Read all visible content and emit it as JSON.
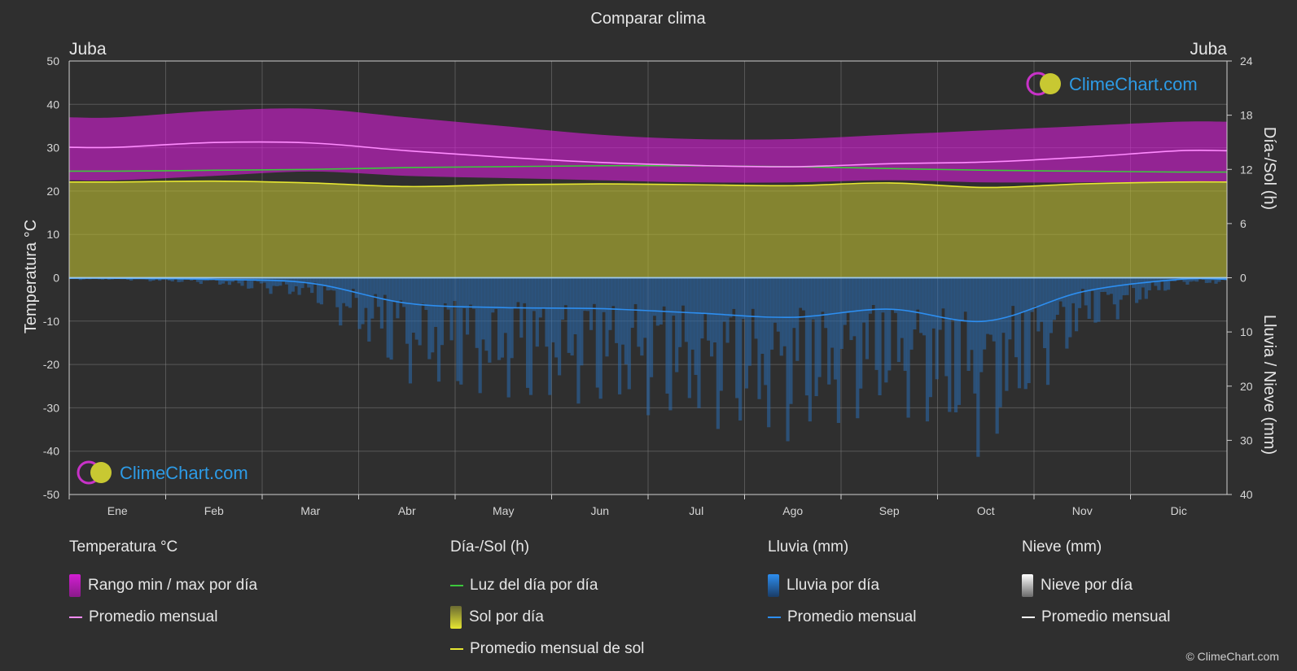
{
  "chart_data": {
    "type": "area",
    "title": "Comparar clima",
    "location_left": "Juba",
    "location_right": "Juba",
    "x_categories": [
      "Ene",
      "Feb",
      "Mar",
      "Abr",
      "May",
      "Jun",
      "Jul",
      "Ago",
      "Sep",
      "Oct",
      "Nov",
      "Dic"
    ],
    "left_axis": {
      "label": "Temperatura °C",
      "min": -50,
      "max": 50,
      "ticks": [
        50,
        40,
        30,
        20,
        10,
        0,
        -10,
        -20,
        -30,
        -40,
        -50
      ]
    },
    "right_axis_top": {
      "label": "Día-/Sol (h)",
      "min": 0,
      "max": 24,
      "ticks": [
        24,
        18,
        12,
        6,
        0
      ]
    },
    "right_axis_bottom": {
      "label": "Lluvia / Nieve (mm)",
      "min": 0,
      "max": 40,
      "ticks": [
        0,
        10,
        20,
        30,
        40
      ]
    },
    "grid": true,
    "series": [
      {
        "name": "Rango min / max por día",
        "type": "band",
        "color": "#d21ed2",
        "min": [
          22.5,
          23.5,
          24.5,
          23.5,
          23,
          22.5,
          22,
          22,
          22.5,
          22,
          22,
          22
        ],
        "max": [
          37,
          38.5,
          39,
          37,
          35,
          33,
          32,
          32,
          33,
          34,
          35,
          36
        ]
      },
      {
        "name": "Promedio mensual",
        "type": "line",
        "color": "#ff8cff",
        "values": [
          30.1,
          31.2,
          31.1,
          29.3,
          27.8,
          26.6,
          25.9,
          25.6,
          26.3,
          26.7,
          27.8,
          29.3
        ]
      },
      {
        "name": "Luz del día por día",
        "type": "line",
        "axis": "sun",
        "color": "#3cc83c",
        "values": [
          11.8,
          11.9,
          12.0,
          12.2,
          12.3,
          12.4,
          12.4,
          12.3,
          12.1,
          11.9,
          11.8,
          11.7
        ]
      },
      {
        "name": "Sol por día",
        "type": "area",
        "axis": "sun",
        "color": "#b9b932",
        "values": [
          10.6,
          10.7,
          10.5,
          10.1,
          10.3,
          10.4,
          10.3,
          10.2,
          10.5,
          10.0,
          10.4,
          10.6
        ]
      },
      {
        "name": "Promedio mensual de sol",
        "type": "line",
        "axis": "sun",
        "color": "#e6e632",
        "values": [
          10.6,
          10.7,
          10.5,
          10.1,
          10.3,
          10.4,
          10.3,
          10.2,
          10.5,
          10.0,
          10.4,
          10.6
        ]
      },
      {
        "name": "Lluvia por día",
        "type": "bars",
        "axis": "rain",
        "color": "#2a6bb0"
      },
      {
        "name": "Promedio mensual",
        "type": "line",
        "axis": "rain",
        "color": "#2d8ef0",
        "values": [
          0.1,
          0.3,
          1.0,
          4.7,
          5.5,
          5.7,
          6.5,
          7.3,
          5.8,
          8.0,
          2.6,
          0.3
        ]
      },
      {
        "name": "Nieve por día",
        "type": "bars",
        "axis": "snow",
        "color": "#ffffff"
      },
      {
        "name": "Promedio mensual",
        "type": "line",
        "axis": "snow",
        "color": "#ffffff",
        "values": [
          0,
          0,
          0,
          0,
          0,
          0,
          0,
          0,
          0,
          0,
          0,
          0
        ]
      }
    ]
  },
  "watermark_text": "ClimeChart.com",
  "legend": {
    "temperature": {
      "title": "Temperatura °C",
      "range": "Rango min / max por día",
      "avg": "Promedio mensual"
    },
    "sun": {
      "title": "Día-/Sol (h)",
      "daylight": "Luz del día por día",
      "sun": "Sol por día",
      "avg": "Promedio mensual de sol"
    },
    "rain": {
      "title": "Lluvia (mm)",
      "rain": "Lluvia por día",
      "avg": "Promedio mensual"
    },
    "snow": {
      "title": "Nieve (mm)",
      "snow": "Nieve por día",
      "avg": "Promedio mensual"
    }
  },
  "copyright": "© ClimeChart.com",
  "colors": {
    "background": "#2f2f2f",
    "temp_band": "#d21ed2",
    "temp_avg": "#ff8cff",
    "daylight": "#3cc83c",
    "sun_area": "#b9b932",
    "sun_avg": "#e6e632",
    "rain": "#2a6bb0",
    "rain_avg": "#2d8ef0",
    "snow": "#ffffff",
    "watermark": "#2d9be6"
  }
}
